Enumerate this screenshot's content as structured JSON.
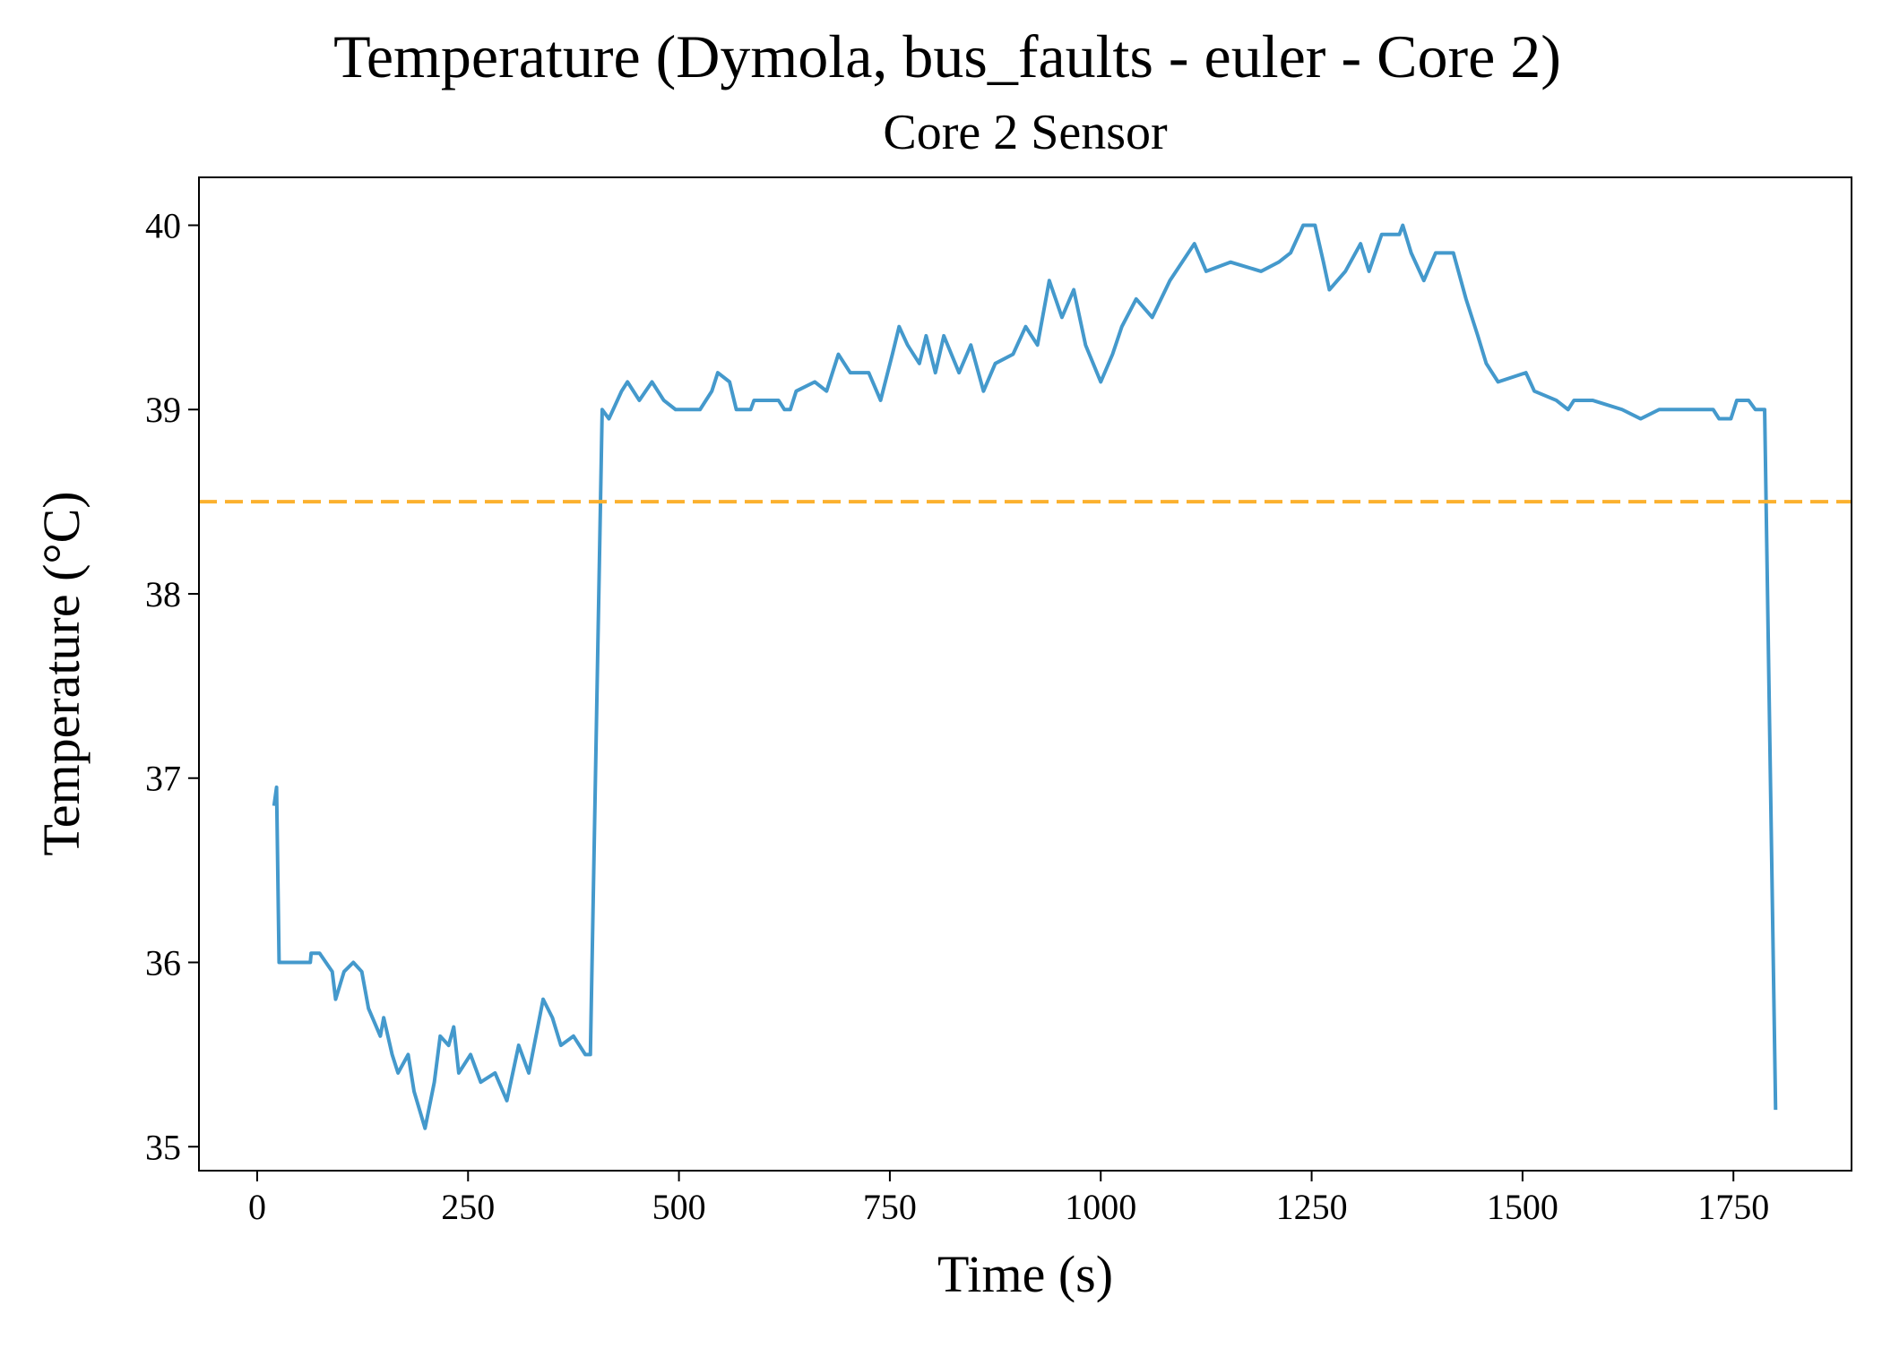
{
  "chart_data": {
    "type": "line",
    "title": "Temperature (Dymola, bus_faults - euler - Core 2)",
    "subtitle": "Core 2 Sensor",
    "x_label": "Time (s)",
    "y_label": "Temperature (°C)",
    "xlim": [
      -69,
      1890
    ],
    "ylim": [
      34.87,
      40.26
    ],
    "xticks": [
      0,
      250,
      500,
      750,
      1000,
      1250,
      1500,
      1750
    ],
    "yticks": [
      35,
      36,
      37,
      38,
      39,
      40
    ],
    "grid": false,
    "threshold": {
      "value": 38.5,
      "color": "#fbb12f"
    },
    "series": [
      {
        "color": "#4499cc",
        "x": [
          20,
          23,
          26,
          63,
          64,
          74,
          89,
          93,
          103,
          114,
          124,
          132,
          146,
          150,
          160,
          167,
          179,
          186,
          199,
          210,
          217,
          227,
          233,
          239,
          253,
          265,
          282,
          296,
          310,
          322,
          339,
          350,
          360,
          375,
          389,
          395,
          409,
          417,
          432,
          439,
          453,
          468,
          482,
          496,
          525,
          539,
          546,
          560,
          568,
          585,
          589,
          618,
          625,
          632,
          639,
          661,
          675,
          689,
          703,
          725,
          739,
          753,
          761,
          771,
          785,
          793,
          804,
          814,
          832,
          846,
          861,
          875,
          896,
          911,
          925,
          939,
          954,
          968,
          982,
          1000,
          1014,
          1025,
          1042,
          1061,
          1082,
          1111,
          1125,
          1154,
          1190,
          1211,
          1225,
          1240,
          1254,
          1264,
          1271,
          1290,
          1308,
          1318,
          1333,
          1354,
          1358,
          1368,
          1383,
          1397,
          1418,
          1433,
          1447,
          1457,
          1471,
          1504,
          1514,
          1540,
          1554,
          1561,
          1583,
          1618,
          1640,
          1662,
          1726,
          1733,
          1747,
          1754,
          1768,
          1776,
          1787,
          1800
        ],
        "values": [
          36.85,
          36.95,
          36.0,
          36.0,
          36.05,
          36.05,
          35.95,
          35.8,
          35.95,
          36.0,
          35.95,
          35.75,
          35.6,
          35.7,
          35.5,
          35.4,
          35.5,
          35.3,
          35.1,
          35.35,
          35.6,
          35.55,
          35.65,
          35.4,
          35.5,
          35.35,
          35.4,
          35.25,
          35.55,
          35.4,
          35.8,
          35.7,
          35.55,
          35.6,
          35.5,
          35.5,
          39.0,
          38.95,
          39.1,
          39.15,
          39.05,
          39.15,
          39.05,
          39.0,
          39.0,
          39.1,
          39.2,
          39.15,
          39.0,
          39.0,
          39.05,
          39.05,
          39.0,
          39.0,
          39.1,
          39.15,
          39.1,
          39.3,
          39.2,
          39.2,
          39.05,
          39.3,
          39.45,
          39.35,
          39.25,
          39.4,
          39.2,
          39.4,
          39.2,
          39.35,
          39.1,
          39.25,
          39.3,
          39.45,
          39.35,
          39.7,
          39.5,
          39.65,
          39.35,
          39.15,
          39.3,
          39.45,
          39.6,
          39.5,
          39.7,
          39.9,
          39.75,
          39.8,
          39.75,
          39.8,
          39.85,
          40.0,
          40.0,
          39.8,
          39.65,
          39.75,
          39.9,
          39.75,
          39.95,
          39.95,
          40.0,
          39.85,
          39.7,
          39.85,
          39.85,
          39.6,
          39.4,
          39.25,
          39.15,
          39.2,
          39.1,
          39.05,
          39.0,
          39.05,
          39.05,
          39.0,
          38.95,
          39.0,
          39.0,
          38.95,
          38.95,
          39.05,
          39.05,
          39.0,
          39.0,
          35.2
        ]
      }
    ]
  }
}
